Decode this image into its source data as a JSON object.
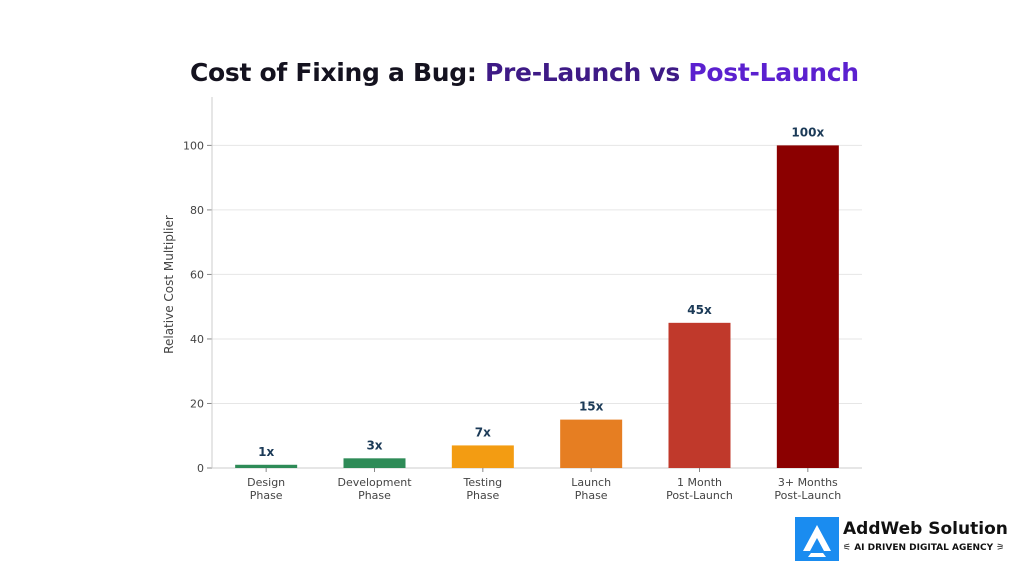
{
  "title": {
    "part1": "Cost of Fixing a Bug: ",
    "part2": "Pre-Launch vs ",
    "part3": "Post-Launch"
  },
  "brand": {
    "name": "AddWeb Solution",
    "tagline": "AI DRIVEN DIGITAL AGENCY",
    "logo_color": "#1a8cf0"
  },
  "chart_data": {
    "type": "bar",
    "title": "Cost of Fixing a Bug: Pre-Launch vs Post-Launch",
    "ylabel": "Relative Cost Multiplier",
    "xlabel": "",
    "ylim": [
      0,
      115
    ],
    "yticks": [
      0,
      20,
      40,
      60,
      80,
      100
    ],
    "grid": true,
    "categories": [
      [
        "Design",
        "Phase"
      ],
      [
        "Development",
        "Phase"
      ],
      [
        "Testing",
        "Phase"
      ],
      [
        "Launch",
        "Phase"
      ],
      [
        "1 Month",
        "Post-Launch"
      ],
      [
        "3+ Months",
        "Post-Launch"
      ]
    ],
    "values": [
      1,
      3,
      7,
      15,
      45,
      100
    ],
    "data_labels": [
      "1x",
      "3x",
      "7x",
      "15x",
      "45x",
      "100x"
    ],
    "colors": [
      "#2e8b57",
      "#2e8b57",
      "#f39c12",
      "#e67e22",
      "#c0392b",
      "#8b0000"
    ],
    "label_color": "#1b3a57"
  }
}
